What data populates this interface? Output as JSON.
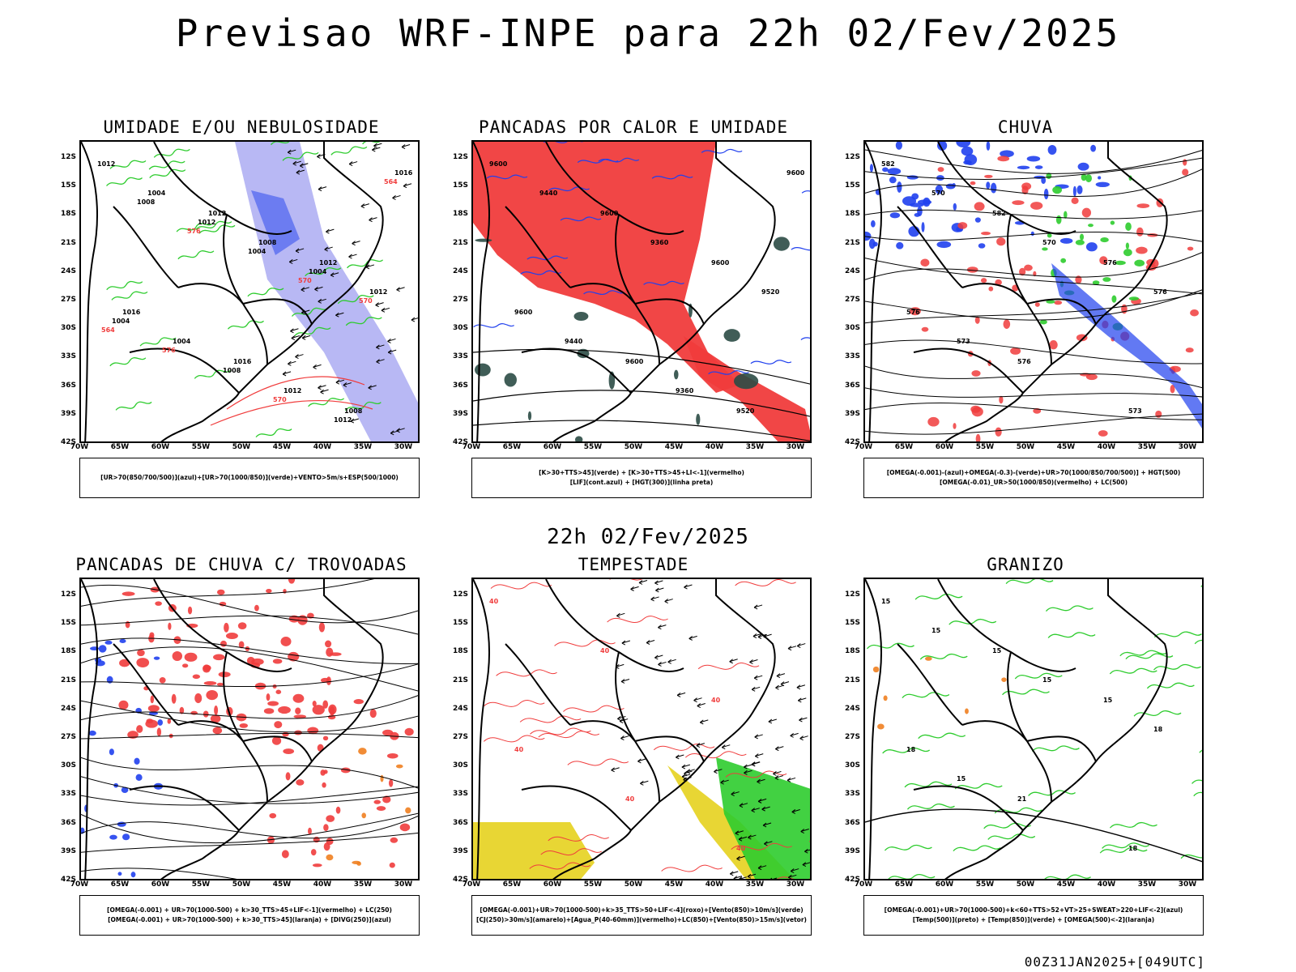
{
  "header": {
    "title": "Previsao WRF-INPE  para 22h 02/Fev/2025"
  },
  "middle": {
    "subtitle": "22h 02/Fev/2025"
  },
  "footer": {
    "run": "00Z31JAN2025+[049UTC]"
  },
  "axes": {
    "lat_labels": [
      "12S",
      "15S",
      "18S",
      "21S",
      "24S",
      "27S",
      "30S",
      "33S",
      "36S",
      "39S",
      "42S"
    ],
    "lon_labels": [
      "70W",
      "65W",
      "60W",
      "55W",
      "50W",
      "45W",
      "40W",
      "35W",
      "30W"
    ]
  },
  "colors": {
    "red": "#f03c3c",
    "green": "#2ecc2e",
    "blue": "#2040ee",
    "lavender": "#9a9af0",
    "darkgreen": "#2b4b45",
    "yellow": "#e6d21e",
    "orange": "#f08020"
  },
  "panels": [
    {
      "title": "UMIDADE E/OU NEBULOSIDADE",
      "legend": [
        "[UR>70(850/700/500)](azul)+[UR>70(1000/850)](verde)+VENTO>5m/s+ESP(500/1000)"
      ],
      "contour_labels": [
        "1012",
        "1012",
        "1012",
        "1016",
        "1016",
        "1008",
        "1004",
        "1008",
        "1012",
        "1004",
        "1012",
        "1016",
        "1012",
        "1004",
        "1004",
        "1008",
        "1012",
        "1008",
        "1004",
        "570",
        "576",
        "570",
        "564",
        "576",
        "570",
        "564"
      ]
    },
    {
      "title": "PANCADAS POR CALOR E UMIDADE",
      "legend": [
        "[K>30+TTS>45](verde) + [K>30+TTS>45+LI<-1](vermelho)",
        "[LIF](cont.azul) + [HGT(300)](linha preta)"
      ],
      "contour_labels": [
        "9600",
        "9600",
        "9600",
        "9600",
        "9600",
        "9520",
        "9440",
        "9360",
        "9520",
        "9440",
        "9360",
        "9600"
      ]
    },
    {
      "title": "CHUVA",
      "legend": [
        "[OMEGA(-0.001)-(azul)+OMEGA(-0.3)-(verde)+UR>70(1000/850/700/500)] + HGT(500)",
        "[OMEGA(-0.01)_UR>50(1000/850)(vermelho) + LC(500)"
      ],
      "contour_labels": [
        "582",
        "582",
        "576",
        "576",
        "576",
        "573",
        "570",
        "570",
        "576",
        "573"
      ]
    },
    {
      "title": "PANCADAS DE CHUVA C/ TROVOADAS",
      "legend": [
        "[OMEGA(-0.001) + UR>70(1000-500) + k>30_TTS>45+LIF<-1](vermelho) + LC(250)",
        "[OMEGA(-0.001) + UR>70(1000-500) + k>30_TTS>45](laranja) + [DIVG(250)](azul)"
      ],
      "contour_labels": []
    },
    {
      "title": "TEMPESTADE",
      "legend": [
        "[OMEGA(-0.001)+UR>70(1000-500)+k>35_TTS>50+LIF<-4](roxo)+[Vento(850)>10m/s](verde)",
        "[CJ(250)>30m/s](amarelo)+[Agua_P(40-60mm)](vermelho)+LC(850)+[Vento(850)>15m/s](vetor)"
      ],
      "contour_labels": [
        "40",
        "40",
        "40",
        "40",
        "40",
        "40"
      ]
    },
    {
      "title": "GRANIZO",
      "legend": [
        "[OMEGA(-0.001)+UR>70(1000-500)+k<60+TTS>52+VT>25+SWEAT>220+LIF<-2](azul)",
        "[Temp(500)](preto) + [Temp(850)](verde) + [OMEGA(500)<-2](laranja)"
      ],
      "contour_labels": [
        "15",
        "15",
        "15",
        "18",
        "21",
        "18",
        "15",
        "15",
        "18",
        "15"
      ]
    }
  ]
}
